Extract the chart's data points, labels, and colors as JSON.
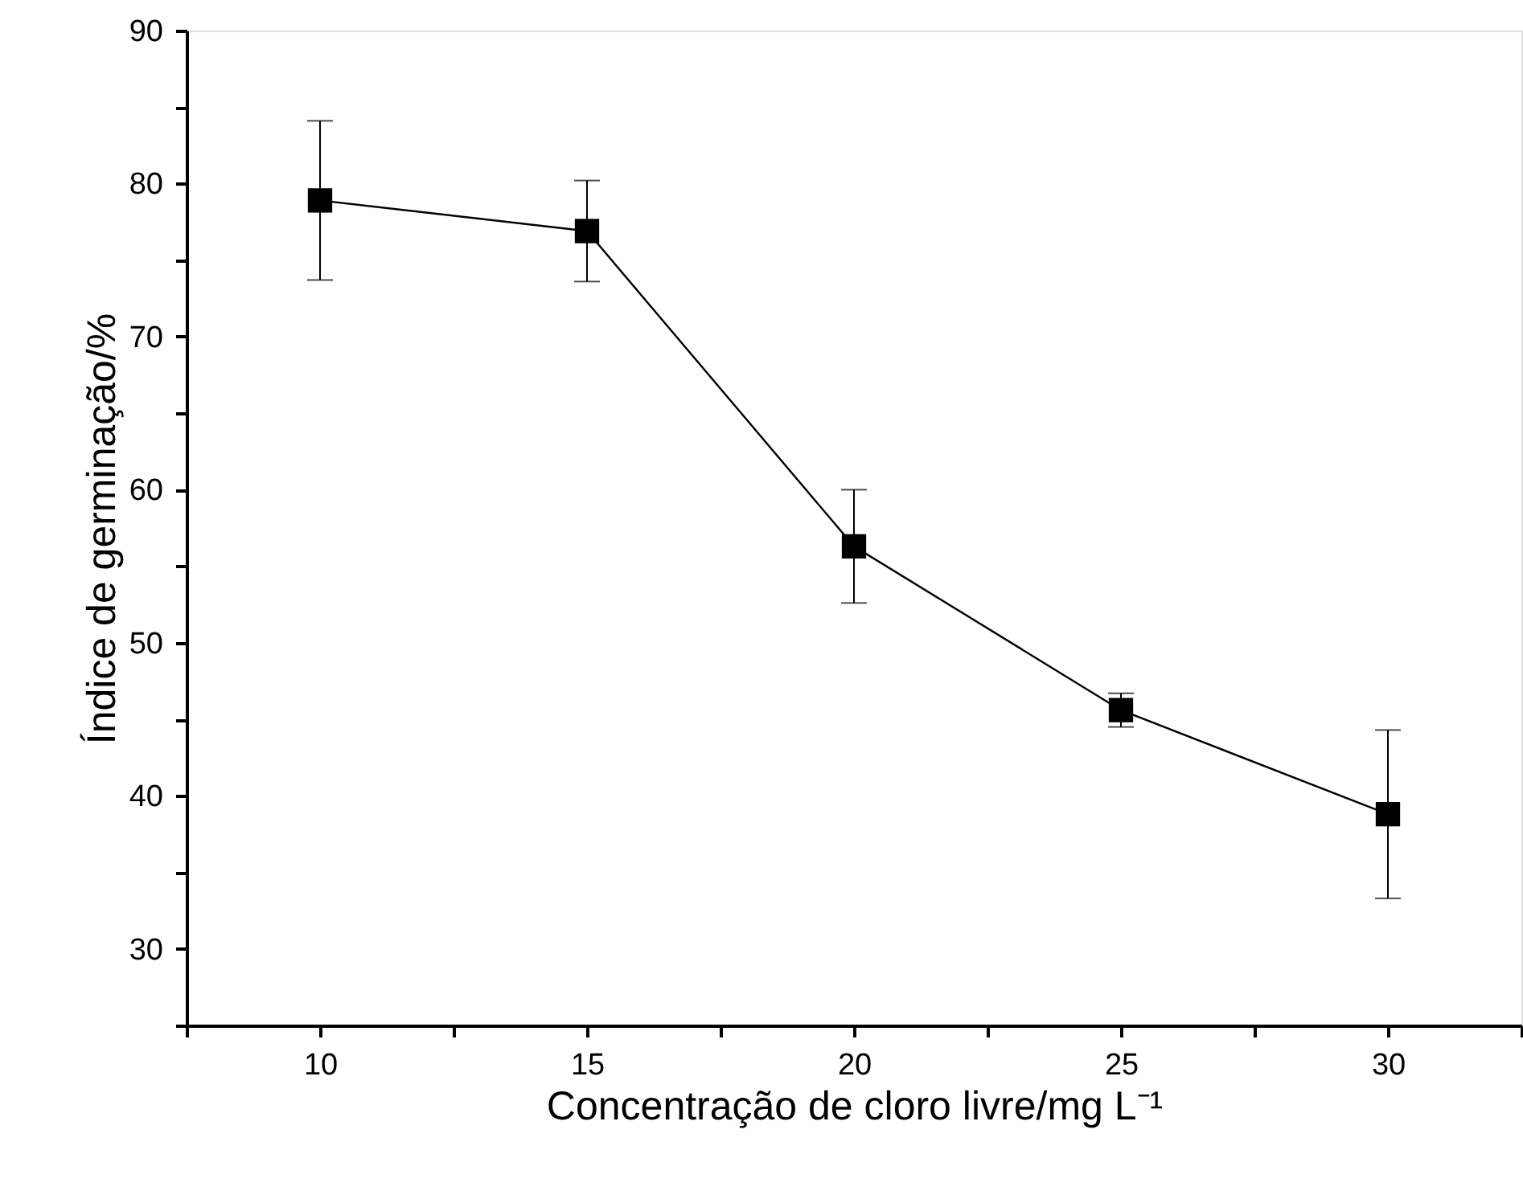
{
  "chart_data": {
    "type": "line",
    "xlabel": "Concentração de cloro livre/mg L⁻¹",
    "ylabel": "Índice de germinação/%",
    "x": [
      10,
      15,
      20,
      25,
      30
    ],
    "series": [
      {
        "color": "#000000",
        "values": [
          78.9,
          76.9,
          56.3,
          45.6,
          38.8
        ],
        "errors": [
          5.2,
          3.3,
          3.7,
          1.1,
          5.5
        ],
        "marker": "square",
        "line_style": "solid"
      }
    ],
    "xlim": [
      7.5,
      32.5
    ],
    "xticks": [
      {
        "value": 7.5,
        "label": null
      },
      10,
      {
        "value": 12.5,
        "label": null
      },
      15,
      {
        "value": 17.5,
        "label": null
      },
      20,
      {
        "value": 22.5,
        "label": null
      },
      25,
      {
        "value": 27.5,
        "label": null
      },
      30,
      {
        "value": 32.5,
        "label": null
      }
    ],
    "ylim": [
      25,
      90
    ],
    "yticks": [
      {
        "value": 25,
        "label": null
      },
      30,
      {
        "value": 35,
        "label": null
      },
      40,
      {
        "value": 45,
        "label": null
      },
      50,
      {
        "value": 55,
        "label": null
      },
      60,
      {
        "value": 65,
        "label": null
      },
      70,
      {
        "value": 75,
        "label": null
      },
      80,
      {
        "value": 85,
        "label": null
      },
      90
    ],
    "grid": false
  }
}
